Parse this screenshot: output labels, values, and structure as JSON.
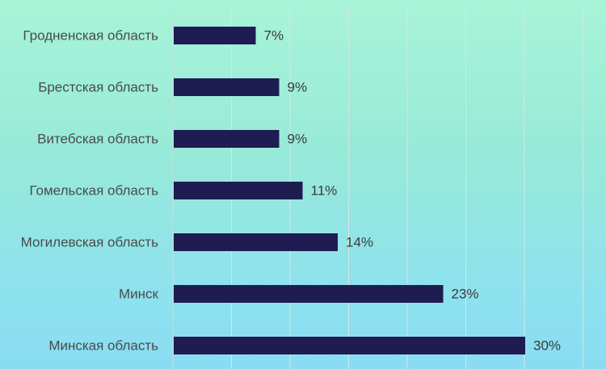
{
  "chart_data": {
    "type": "bar",
    "orientation": "horizontal",
    "categories": [
      "Гродненская область",
      "Брестская область",
      "Витебская область",
      "Гомельская область",
      "Могилевская область",
      "Минск",
      "Минская область"
    ],
    "values": [
      7,
      9,
      9,
      11,
      14,
      23,
      30
    ],
    "value_labels": [
      "7%",
      "9%",
      "9%",
      "11%",
      "14%",
      "23%",
      "30%"
    ],
    "xlim": [
      0,
      35
    ],
    "grid": true,
    "bar_color": "#1f1c52",
    "background_top": "#a8f4d8",
    "background_bottom": "#8adcf3"
  }
}
